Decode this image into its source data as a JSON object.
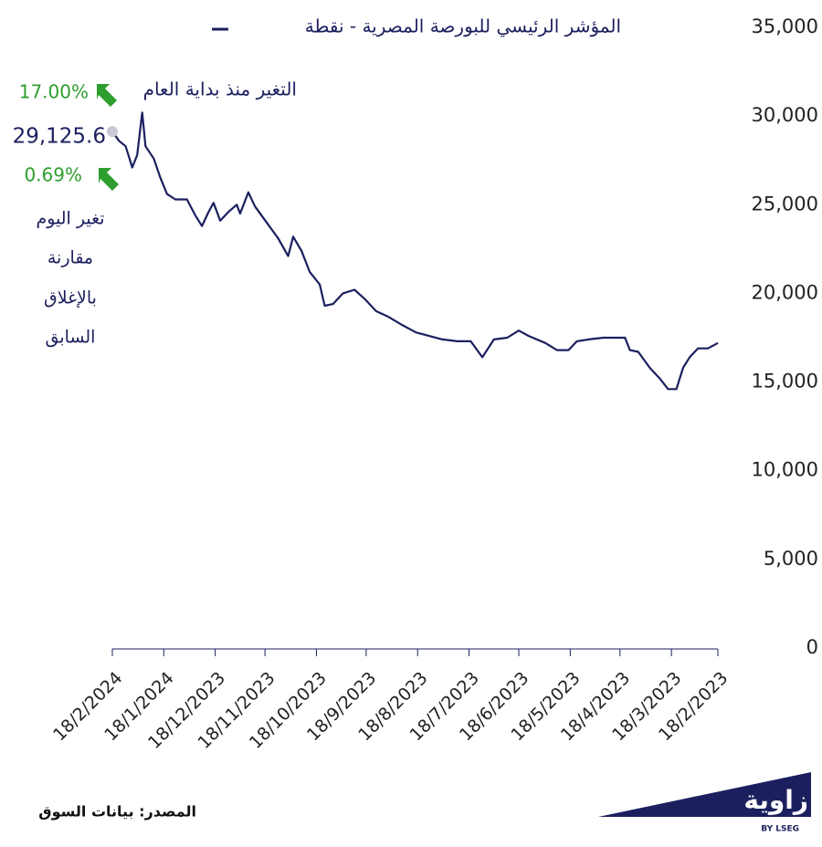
{
  "chart_data": {
    "type": "line",
    "x_reversed": true,
    "y_axis_side": "right",
    "series": [
      {
        "name": "المؤشر الرئيسي للبورصة المصرية - نقطة",
        "color": "#1b1f5e",
        "x": [
          "18/2/2023",
          "24/2/2023",
          "2/3/2023",
          "7/3/2023",
          "11/3/2023",
          "15/3/2023",
          "20/3/2023",
          "25/3/2023",
          "31/3/2023",
          "7/4/2023",
          "12/4/2023",
          "15/4/2023",
          "28/4/2023",
          "7/5/2023",
          "14/5/2023",
          "19/5/2023",
          "26/5/2023",
          "2/6/2023",
          "12/6/2023",
          "18/6/2023",
          "25/6/2023",
          "3/7/2023",
          "10/7/2023",
          "17/7/2023",
          "25/7/2023",
          "3/8/2023",
          "11/8/2023",
          "19/8/2023",
          "27/8/2023",
          "5/9/2023",
          "12/9/2023",
          "19/9/2023",
          "25/9/2023",
          "2/10/2023",
          "8/10/2023",
          "13/10/2023",
          "16/10/2023",
          "22/10/2023",
          "27/10/2023",
          "1/11/2023",
          "4/11/2023",
          "10/11/2023",
          "17/11/2023",
          "24/11/2023",
          "28/11/2023",
          "3/12/2023",
          "5/12/2023",
          "10/12/2023",
          "15/12/2023",
          "19/12/2023",
          "22/12/2023",
          "26/12/2023",
          "30/12/2023",
          "4/1/2024",
          "11/1/2024",
          "16/1/2024",
          "20/1/2024",
          "24/1/2024",
          "29/1/2024",
          "31/1/2024",
          "3/2/2024",
          "6/2/2024",
          "8/2/2024",
          "10/2/2024",
          "14/2/2024",
          "18/2/2024"
        ],
        "values": [
          17200,
          16900,
          16900,
          16400,
          15800,
          14600,
          14600,
          15200,
          15800,
          16700,
          16800,
          17500,
          17500,
          17400,
          17300,
          16800,
          16800,
          17200,
          17600,
          17900,
          17500,
          17400,
          16400,
          17300,
          17300,
          17400,
          17600,
          17800,
          18200,
          18700,
          19000,
          19700,
          20200,
          20000,
          19400,
          19300,
          20500,
          21200,
          22400,
          23200,
          22100,
          23100,
          24000,
          24900,
          25700,
          24500,
          25000,
          24600,
          24100,
          25100,
          24600,
          23800,
          24400,
          25300,
          25300,
          25600,
          26500,
          27600,
          28300,
          30200,
          27800,
          27100,
          27700,
          28300,
          28600,
          29125.6
        ]
      }
    ],
    "ylim": [
      0,
      35000
    ],
    "yticks": [
      0,
      {
        "value": 5000,
        "label": "5,000"
      },
      {
        "value": 10000,
        "label": "10,000"
      },
      {
        "value": 15000,
        "label": "15,000"
      },
      {
        "value": 20000,
        "label": "20,000"
      },
      {
        "value": 25000,
        "label": "25,000"
      },
      {
        "value": 30000,
        "label": "30,000"
      },
      {
        "value": 35000,
        "label": "35,000"
      }
    ],
    "xlim": [
      "18/2/2023",
      "18/2/2024"
    ],
    "xticks": [
      "18/2/2024",
      "18/1/2024",
      "18/12/2023",
      "18/11/2023",
      "18/10/2023",
      "18/9/2023",
      "18/8/2023",
      "18/7/2023",
      "18/6/2023",
      "18/5/2023",
      "18/4/2023",
      "18/3/2023",
      "18/2/2023"
    ],
    "annotations": {
      "ytd_label": "التغير منذ بداية العام",
      "ytd_change": "17.00%",
      "last_value": "29,125.6",
      "daily_change": "0.69%",
      "daily_label": [
        "تغير اليوم",
        "مقارنة",
        "بالإغلاق",
        "السابق"
      ]
    },
    "source": "المصدر: بيانات السوق",
    "logo": {
      "name": "زاوية",
      "sub": "BY LSEG"
    }
  }
}
